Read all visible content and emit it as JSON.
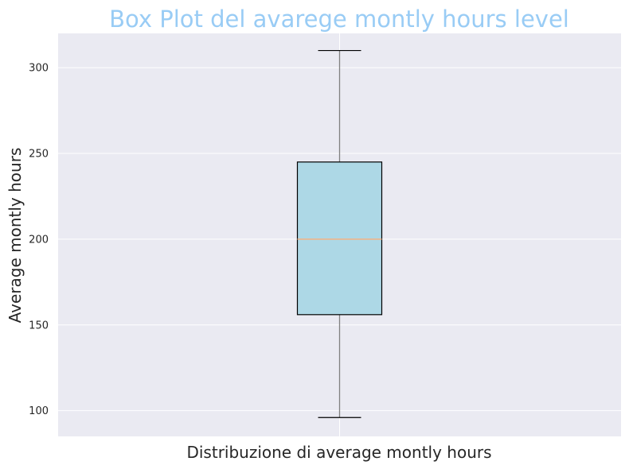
{
  "chart_data": {
    "type": "box",
    "title": "Box Plot del avarege montly hours level",
    "xlabel": "Distribuzione di average montly hours",
    "ylabel": "Average montly hours",
    "ylim": [
      85,
      320
    ],
    "yticks": [
      100,
      150,
      200,
      250,
      300
    ],
    "grid": true,
    "box": {
      "whisker_low": 96,
      "q1": 156,
      "median": 200,
      "q3": 245,
      "whisker_high": 310
    },
    "colors": {
      "background": "#eaeaf2",
      "box_fill": "#add8e6",
      "median": "#f4b183",
      "whisker": "#808080",
      "title": "#99ccf5"
    }
  }
}
